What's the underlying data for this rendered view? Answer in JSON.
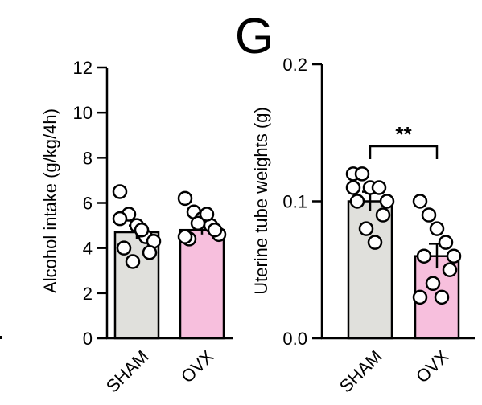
{
  "panel_letter": "G",
  "chart_data": [
    {
      "type": "bar",
      "title": "",
      "xlabel": "",
      "ylabel": "Alcohol intake (g/kg/4h)",
      "ylim": [
        0,
        12
      ],
      "yticks": [
        0,
        2,
        4,
        6,
        8,
        10,
        12
      ],
      "ytick_labels": [
        "0",
        "2",
        "4",
        "6",
        "8",
        "10",
        "12"
      ],
      "categories": [
        "SHAM",
        "OVX"
      ],
      "values": [
        4.7,
        4.8
      ],
      "error": [
        0.3,
        0.2
      ],
      "bar_colors": [
        "#e0e0dc",
        "#f7bfdd"
      ],
      "points": [
        [
          6.5,
          5.5,
          5.0,
          4.5,
          4.3,
          4.0,
          3.8,
          3.4,
          4.8,
          5.3
        ],
        [
          6.2,
          5.6,
          5.3,
          5.0,
          4.6,
          4.4,
          4.8,
          5.1,
          5.5,
          4.5
        ]
      ],
      "grid": false,
      "significance": null
    },
    {
      "type": "bar",
      "title": "",
      "xlabel": "",
      "ylabel": "Uterine tube weights (g)",
      "ylim": [
        0,
        0.2
      ],
      "yticks": [
        0,
        0.1,
        0.2
      ],
      "ytick_labels": [
        "0.0",
        "0.1",
        "0.2"
      ],
      "categories": [
        "SHAM",
        "OVX"
      ],
      "values": [
        0.1,
        0.06
      ],
      "error": [
        0.007,
        0.009
      ],
      "bar_colors": [
        "#e0e0dc",
        "#f7bfdd"
      ],
      "points": [
        [
          0.12,
          0.12,
          0.11,
          0.11,
          0.1,
          0.1,
          0.09,
          0.08,
          0.07,
          0.11
        ],
        [
          0.1,
          0.09,
          0.08,
          0.07,
          0.06,
          0.06,
          0.05,
          0.04,
          0.03,
          0.03
        ]
      ],
      "grid": false,
      "significance": "**"
    }
  ]
}
